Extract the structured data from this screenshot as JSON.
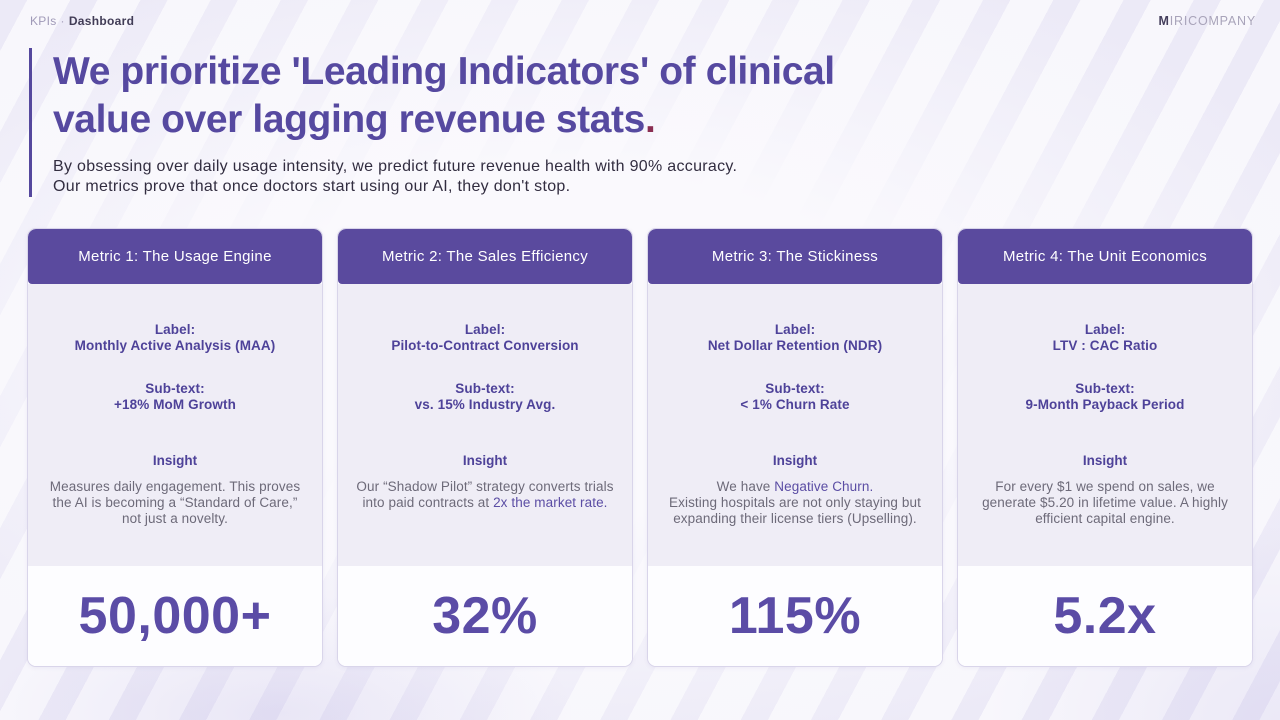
{
  "topbar": {
    "breadcrumb": {
      "section": "KPIs",
      "separator": "·",
      "current": "Dashboard"
    },
    "brand": {
      "initial": "M",
      "rest": "IRICOMPANY"
    }
  },
  "hero": {
    "title_line1": "We prioritize 'Leading Indicators' of clinical",
    "title_line2": "value over lagging revenue stats",
    "title_period": ".",
    "subtitle_line1": "By obsessing over daily usage intensity, we predict future revenue health with 90% accuracy.",
    "subtitle_line2": "Our metrics prove that once doctors start using our AI, they don't stop."
  },
  "cards": [
    {
      "header": "Metric 1: The Usage Engine",
      "label_title": "Label:",
      "label_value": "Monthly Active Analysis (MAA)",
      "subtext_title": "Sub-text:",
      "subtext_value": "+18% MoM Growth",
      "insight_title": "Insight",
      "insight": {
        "pre": "Measures daily engagement. This proves the AI is becoming a “Standard of Care,” not just a novelty.",
        "highlight": "",
        "post": ""
      },
      "value": "50,000+"
    },
    {
      "header": "Metric 2: The Sales Efficiency",
      "label_title": "Label:",
      "label_value": "Pilot-to-Contract Conversion",
      "subtext_title": "Sub-text:",
      "subtext_value": "vs. 15% Industry Avg.",
      "insight_title": "Insight",
      "insight": {
        "pre": "Our “Shadow Pilot” strategy converts trials into paid contracts at ",
        "highlight": "2x the market rate.",
        "post": ""
      },
      "value": "32%"
    },
    {
      "header": "Metric 3: The Stickiness",
      "label_title": "Label:",
      "label_value": "Net Dollar Retention (NDR)",
      "subtext_title": "Sub-text:",
      "subtext_value": "< 1% Churn Rate",
      "insight_title": "Insight",
      "insight": {
        "pre": "We have ",
        "highlight": "Negative Churn.",
        "post": "Existing hospitals are not only staying but expanding their license tiers (Upselling)."
      },
      "value": "115%"
    },
    {
      "header": "Metric 4: The Unit Economics",
      "label_title": "Label:",
      "label_value": "LTV : CAC Ratio",
      "subtext_title": "Sub-text:",
      "subtext_value": "9-Month Payback Period",
      "insight_title": "Insight",
      "insight": {
        "pre": "For every $1 we spend on sales, we generate $5.20 in lifetime value. A highly efficient capital engine.",
        "highlight": "",
        "post": ""
      },
      "value": "5.2x"
    }
  ],
  "colors": {
    "accent_purple": "#5a4a9e",
    "headline_purple": "#5649a0",
    "period_red": "#8a2e52",
    "card_body_bg": "#efedf6",
    "big_value_purple": "#5b4ca6",
    "insight_gray": "#6d6a79"
  }
}
